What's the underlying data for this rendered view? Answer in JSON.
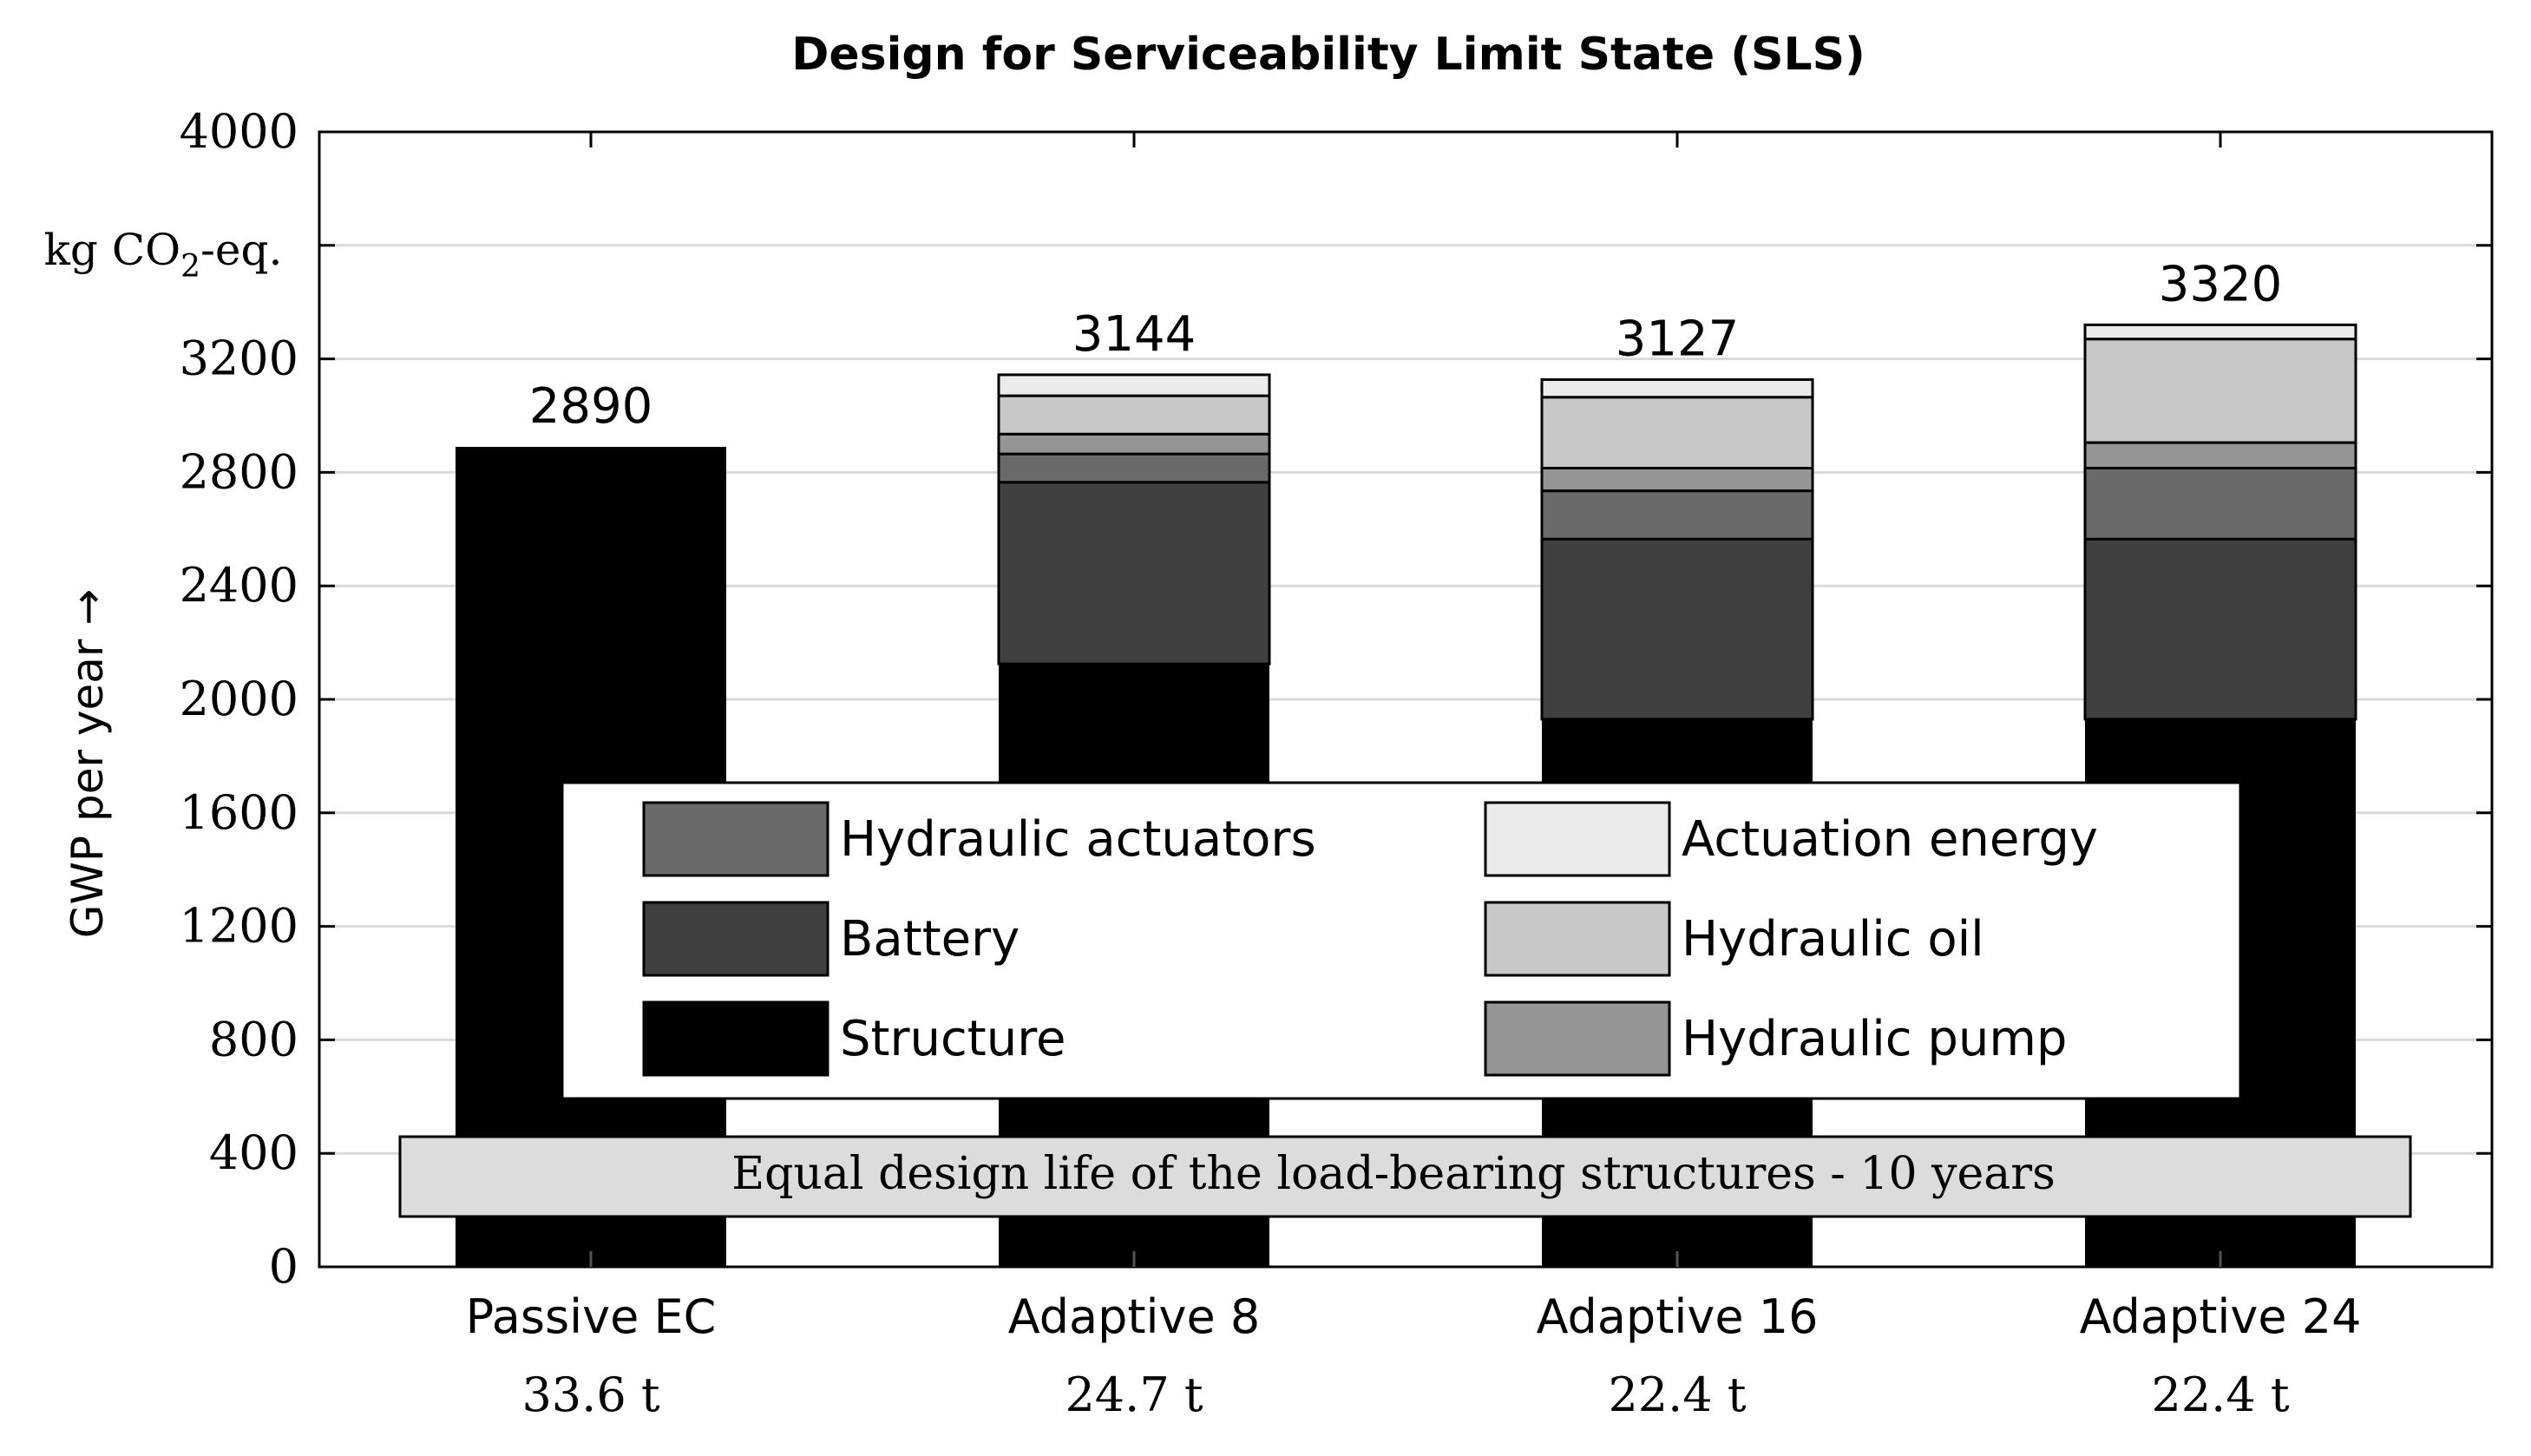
{
  "chart_data": {
    "type": "bar",
    "stacked": true,
    "title": "Design for Serviceability Limit State (SLS)",
    "ylabel": "GWP per year →",
    "yunit_prefix": "kg CO",
    "yunit_sub": "2",
    "yunit_suffix": "-eq.",
    "ylim": [
      0,
      4000
    ],
    "yticks": [
      0,
      400,
      800,
      1200,
      1600,
      2000,
      2400,
      2800,
      3200,
      4000
    ],
    "grid": true,
    "categories": [
      "Passive EC",
      "Adaptive 8",
      "Adaptive 16",
      "Adaptive 24"
    ],
    "masses": [
      "33.6 t",
      "24.7 t",
      "22.4 t",
      "22.4 t"
    ],
    "totals": [
      2890,
      3144,
      3127,
      3320
    ],
    "series": [
      {
        "name": "Structure",
        "color": "#000000",
        "values": [
          2890,
          2125,
          1930,
          1930
        ]
      },
      {
        "name": "Battery",
        "color": "#404040",
        "values": [
          0,
          640,
          635,
          635
        ]
      },
      {
        "name": "Hydraulic actuators",
        "color": "#6a6a6a",
        "values": [
          0,
          100,
          170,
          250
        ]
      },
      {
        "name": "Hydraulic pump",
        "color": "#959595",
        "values": [
          0,
          70,
          80,
          90
        ]
      },
      {
        "name": "Hydraulic oil",
        "color": "#c8c8c8",
        "values": [
          0,
          135,
          250,
          365
        ]
      },
      {
        "name": "Actuation energy",
        "color": "#ebebeb",
        "values": [
          0,
          74,
          62,
          50
        ]
      }
    ],
    "legend_order": [
      "Hydraulic actuators",
      "Actuation energy",
      "Battery",
      "Hydraulic oil",
      "Structure",
      "Hydraulic pump"
    ],
    "legend_position": "center",
    "annotation": "Equal design life of the load-bearing structures - 10 years"
  }
}
